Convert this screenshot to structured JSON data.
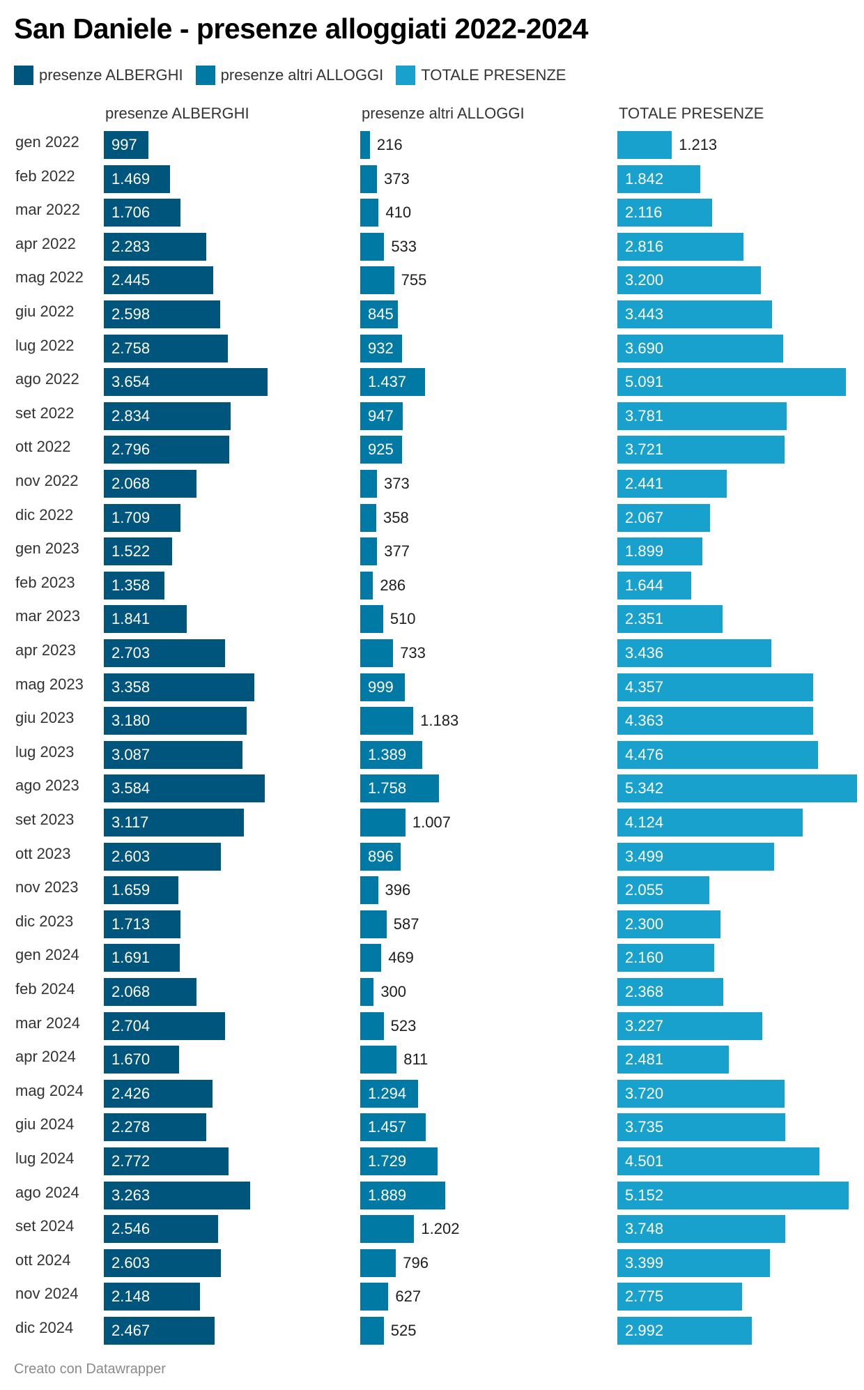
{
  "chart_data": {
    "type": "bar",
    "orientation": "horizontal",
    "layout": "split-bars",
    "title": "San Daniele - presenze alloggiati 2022-2024",
    "xlabel": "",
    "ylabel": "",
    "legend_position": "top-left",
    "number_format": "it (dot thousands separator)",
    "categories": [
      "gen 2022",
      "feb 2022",
      "mar 2022",
      "apr 2022",
      "mag 2022",
      "giu 2022",
      "lug 2022",
      "ago 2022",
      "set 2022",
      "ott 2022",
      "nov 2022",
      "dic 2022",
      "gen 2023",
      "feb 2023",
      "mar 2023",
      "apr 2023",
      "mag 2023",
      "giu 2023",
      "lug 2023",
      "ago 2023",
      "set 2023",
      "ott 2023",
      "nov 2023",
      "dic 2023",
      "gen 2024",
      "feb 2024",
      "mar 2024",
      "apr 2024",
      "mag 2024",
      "giu 2024",
      "lug 2024",
      "ago 2024",
      "set 2024",
      "ott 2024",
      "nov 2024",
      "dic 2024"
    ],
    "series": [
      {
        "name": "presenze ALBERGHI",
        "color": "#00557d",
        "values": [
          997,
          1469,
          1706,
          2283,
          2445,
          2598,
          2758,
          3654,
          2834,
          2796,
          2068,
          1709,
          1522,
          1358,
          1841,
          2703,
          3358,
          3180,
          3087,
          3584,
          3117,
          2603,
          1659,
          1713,
          1691,
          2068,
          2704,
          1670,
          2426,
          2278,
          2772,
          3263,
          2546,
          2603,
          2148,
          2467
        ]
      },
      {
        "name": "presenze altri ALLOGGI",
        "color": "#0079a4",
        "values": [
          216,
          373,
          410,
          533,
          755,
          845,
          932,
          1437,
          947,
          925,
          373,
          358,
          377,
          286,
          510,
          733,
          999,
          1183,
          1389,
          1758,
          1007,
          896,
          396,
          587,
          469,
          300,
          523,
          811,
          1294,
          1457,
          1729,
          1889,
          1202,
          796,
          627,
          525
        ]
      },
      {
        "name": "TOTALE PRESENZE",
        "color": "#18a1cd",
        "values": [
          1213,
          1842,
          2116,
          2816,
          3200,
          3443,
          3690,
          5091,
          3781,
          3721,
          2441,
          2067,
          1899,
          1644,
          2351,
          3436,
          4357,
          4363,
          4476,
          5342,
          4124,
          3499,
          2055,
          2300,
          2160,
          2368,
          3227,
          2481,
          3720,
          3735,
          4501,
          5152,
          3748,
          3399,
          2775,
          2992
        ]
      }
    ],
    "xlim": [
      0,
      5400
    ]
  },
  "footer": "Creato con Datawrapper"
}
